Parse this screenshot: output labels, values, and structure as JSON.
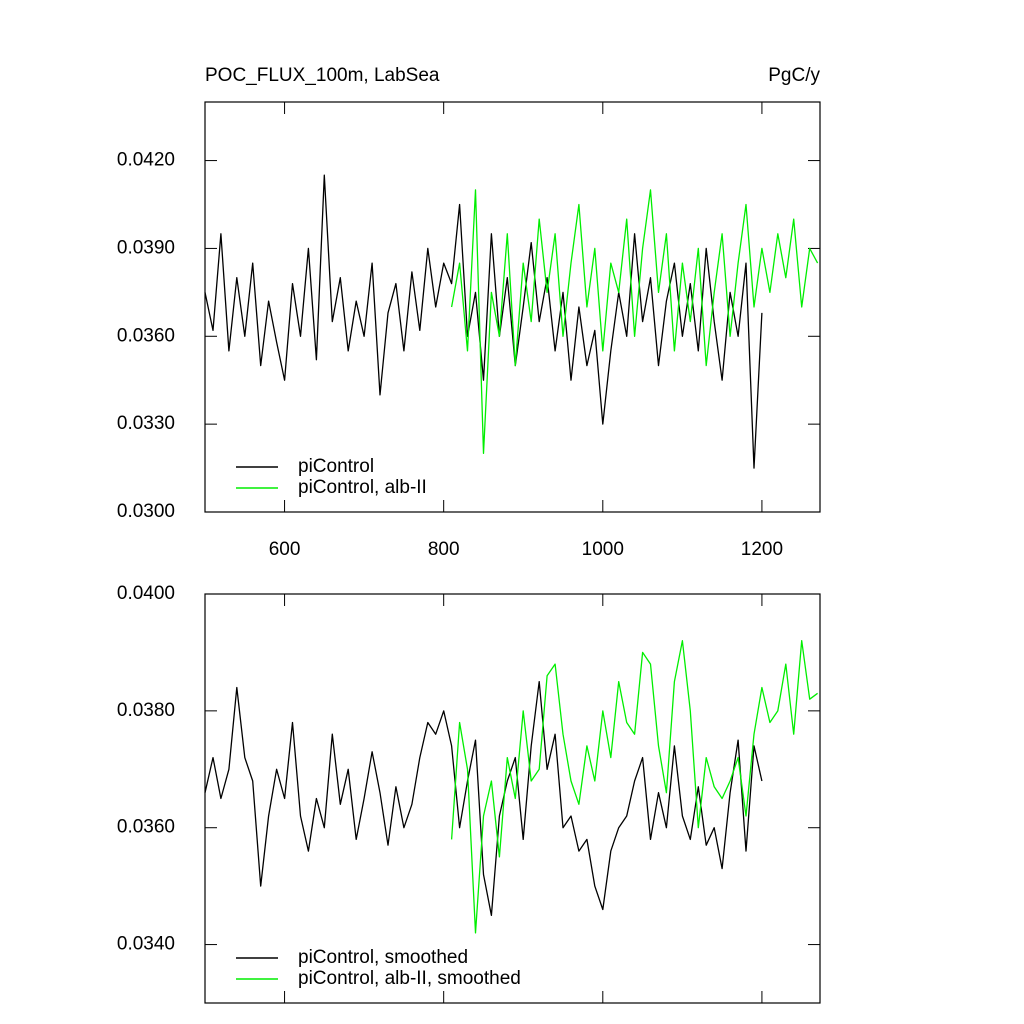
{
  "chart_data": [
    {
      "type": "line",
      "title": "POC_FLUX_100m, LabSea",
      "units": "PgC/y",
      "xlim": [
        500,
        1273
      ],
      "xticks": [
        600,
        800,
        1000,
        1200
      ],
      "xtick_labels": true,
      "ylim": [
        0.03,
        0.044
      ],
      "yticks": [
        {
          "value": 0.03,
          "label": "0.0300"
        },
        {
          "value": 0.033,
          "label": "0.0330"
        },
        {
          "value": 0.036,
          "label": "0.0360"
        },
        {
          "value": 0.039,
          "label": "0.0390"
        },
        {
          "value": 0.042,
          "label": "0.0420"
        }
      ],
      "legend": "lower left",
      "series": [
        {
          "name": "piControl",
          "color": "#000000",
          "x": [
            500,
            510,
            520,
            530,
            540,
            550,
            560,
            570,
            580,
            590,
            600,
            610,
            620,
            630,
            640,
            650,
            660,
            670,
            680,
            690,
            700,
            710,
            720,
            730,
            740,
            750,
            760,
            770,
            780,
            790,
            800,
            810,
            820,
            830,
            840,
            850,
            860,
            870,
            880,
            890,
            900,
            910,
            920,
            930,
            940,
            950,
            960,
            970,
            980,
            990,
            1000,
            1010,
            1020,
            1030,
            1040,
            1050,
            1060,
            1070,
            1080,
            1090,
            1100,
            1110,
            1120,
            1130,
            1140,
            1150,
            1160,
            1170,
            1180,
            1190,
            1200
          ],
          "values": [
            0.0375,
            0.0362,
            0.0395,
            0.0355,
            0.038,
            0.036,
            0.0385,
            0.035,
            0.0372,
            0.0358,
            0.0345,
            0.0378,
            0.036,
            0.039,
            0.0352,
            0.0415,
            0.0365,
            0.038,
            0.0355,
            0.0372,
            0.036,
            0.0385,
            0.034,
            0.0368,
            0.0378,
            0.0355,
            0.0382,
            0.0362,
            0.039,
            0.037,
            0.0385,
            0.0378,
            0.0405,
            0.036,
            0.0375,
            0.0345,
            0.0395,
            0.036,
            0.038,
            0.035,
            0.037,
            0.0392,
            0.0365,
            0.038,
            0.0355,
            0.0375,
            0.0345,
            0.037,
            0.035,
            0.0362,
            0.033,
            0.0355,
            0.0375,
            0.036,
            0.0395,
            0.0365,
            0.038,
            0.035,
            0.0372,
            0.0385,
            0.036,
            0.0378,
            0.0355,
            0.039,
            0.0365,
            0.0345,
            0.0375,
            0.036,
            0.0385,
            0.0315,
            0.0368
          ]
        },
        {
          "name": "piControl, alb-II",
          "color": "#00ee00",
          "x": [
            810,
            820,
            830,
            840,
            850,
            860,
            870,
            880,
            890,
            900,
            910,
            920,
            930,
            940,
            950,
            960,
            970,
            980,
            990,
            1000,
            1010,
            1020,
            1030,
            1040,
            1050,
            1060,
            1070,
            1080,
            1090,
            1100,
            1110,
            1120,
            1130,
            1140,
            1150,
            1160,
            1170,
            1180,
            1190,
            1200,
            1210,
            1220,
            1230,
            1240,
            1250,
            1260,
            1270
          ],
          "values": [
            0.037,
            0.0385,
            0.0355,
            0.041,
            0.032,
            0.0375,
            0.036,
            0.0395,
            0.035,
            0.0385,
            0.0365,
            0.04,
            0.0375,
            0.0395,
            0.036,
            0.0385,
            0.0405,
            0.037,
            0.039,
            0.0355,
            0.0385,
            0.0375,
            0.04,
            0.036,
            0.039,
            0.041,
            0.0375,
            0.0395,
            0.0355,
            0.0385,
            0.0365,
            0.039,
            0.035,
            0.0375,
            0.0395,
            0.036,
            0.0385,
            0.0405,
            0.037,
            0.039,
            0.0375,
            0.0395,
            0.038,
            0.04,
            0.037,
            0.039,
            0.0385
          ]
        }
      ]
    },
    {
      "type": "line",
      "xlim": [
        500,
        1273
      ],
      "xticks": [
        600,
        800,
        1000,
        1200
      ],
      "xtick_labels": false,
      "ylim": [
        0.033,
        0.04
      ],
      "yticks": [
        {
          "value": 0.034,
          "label": "0.0340"
        },
        {
          "value": 0.036,
          "label": "0.0360"
        },
        {
          "value": 0.038,
          "label": "0.0380"
        },
        {
          "value": 0.04,
          "label": "0.0400"
        }
      ],
      "legend": "lower left",
      "series": [
        {
          "name": "piControl, smoothed",
          "color": "#000000",
          "x": [
            500,
            510,
            520,
            530,
            540,
            550,
            560,
            570,
            580,
            590,
            600,
            610,
            620,
            630,
            640,
            650,
            660,
            670,
            680,
            690,
            700,
            710,
            720,
            730,
            740,
            750,
            760,
            770,
            780,
            790,
            800,
            810,
            820,
            830,
            840,
            850,
            860,
            870,
            880,
            890,
            900,
            910,
            920,
            930,
            940,
            950,
            960,
            970,
            980,
            990,
            1000,
            1010,
            1020,
            1030,
            1040,
            1050,
            1060,
            1070,
            1080,
            1090,
            1100,
            1110,
            1120,
            1130,
            1140,
            1150,
            1160,
            1170,
            1180,
            1190,
            1200
          ],
          "values": [
            0.0366,
            0.0372,
            0.0365,
            0.037,
            0.0384,
            0.0372,
            0.0368,
            0.035,
            0.0362,
            0.037,
            0.0365,
            0.0378,
            0.0362,
            0.0356,
            0.0365,
            0.036,
            0.0376,
            0.0364,
            0.037,
            0.0358,
            0.0365,
            0.0373,
            0.0366,
            0.0357,
            0.0367,
            0.036,
            0.0364,
            0.0372,
            0.0378,
            0.0376,
            0.038,
            0.0374,
            0.036,
            0.0368,
            0.0375,
            0.0352,
            0.0345,
            0.0362,
            0.0368,
            0.0372,
            0.0358,
            0.0374,
            0.0385,
            0.037,
            0.0376,
            0.036,
            0.0362,
            0.0356,
            0.0358,
            0.035,
            0.0346,
            0.0356,
            0.036,
            0.0362,
            0.0368,
            0.0372,
            0.0358,
            0.0366,
            0.036,
            0.0374,
            0.0362,
            0.0358,
            0.0367,
            0.0357,
            0.036,
            0.0353,
            0.0366,
            0.0375,
            0.0356,
            0.0374,
            0.0368
          ]
        },
        {
          "name": "piControl, alb-II, smoothed",
          "color": "#00ee00",
          "x": [
            810,
            820,
            830,
            840,
            850,
            860,
            870,
            880,
            890,
            900,
            910,
            920,
            930,
            940,
            950,
            960,
            970,
            980,
            990,
            1000,
            1010,
            1020,
            1030,
            1040,
            1050,
            1060,
            1070,
            1080,
            1090,
            1100,
            1110,
            1120,
            1130,
            1140,
            1150,
            1160,
            1170,
            1180,
            1190,
            1200,
            1210,
            1220,
            1230,
            1240,
            1250,
            1260,
            1270
          ],
          "values": [
            0.0358,
            0.0378,
            0.037,
            0.0342,
            0.0362,
            0.0368,
            0.0355,
            0.0372,
            0.0365,
            0.038,
            0.0368,
            0.037,
            0.0386,
            0.0388,
            0.0376,
            0.0368,
            0.0364,
            0.0374,
            0.0368,
            0.038,
            0.0372,
            0.0385,
            0.0378,
            0.0376,
            0.039,
            0.0388,
            0.0374,
            0.0366,
            0.0385,
            0.0392,
            0.038,
            0.036,
            0.0372,
            0.0367,
            0.0365,
            0.0368,
            0.0372,
            0.0362,
            0.0376,
            0.0384,
            0.0378,
            0.038,
            0.0388,
            0.0376,
            0.0392,
            0.0382,
            0.0383
          ]
        }
      ]
    }
  ]
}
